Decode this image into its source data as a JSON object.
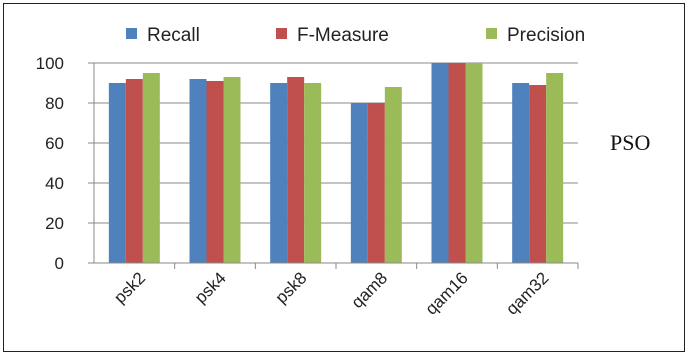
{
  "chart_data": {
    "type": "bar",
    "categories": [
      "psk2",
      "psk4",
      "psk8",
      "qam8",
      "qam16",
      "qam32"
    ],
    "series": [
      {
        "name": "Recall",
        "color": "#4F81BD",
        "values": [
          90,
          92,
          90,
          80,
          100,
          90
        ]
      },
      {
        "name": "F-Measure",
        "color": "#C0504D",
        "values": [
          92,
          91,
          93,
          80,
          100,
          89
        ]
      },
      {
        "name": "Precision",
        "color": "#9BBB59",
        "values": [
          95,
          93,
          90,
          88,
          100,
          95
        ]
      }
    ],
    "title": "",
    "xlabel": "",
    "ylabel": "",
    "ylim": [
      0,
      100
    ],
    "yticks": [
      "0",
      "20",
      "40",
      "60",
      "80",
      "100"
    ],
    "grid": true,
    "legend_position": "top",
    "side_label": "PSO"
  }
}
